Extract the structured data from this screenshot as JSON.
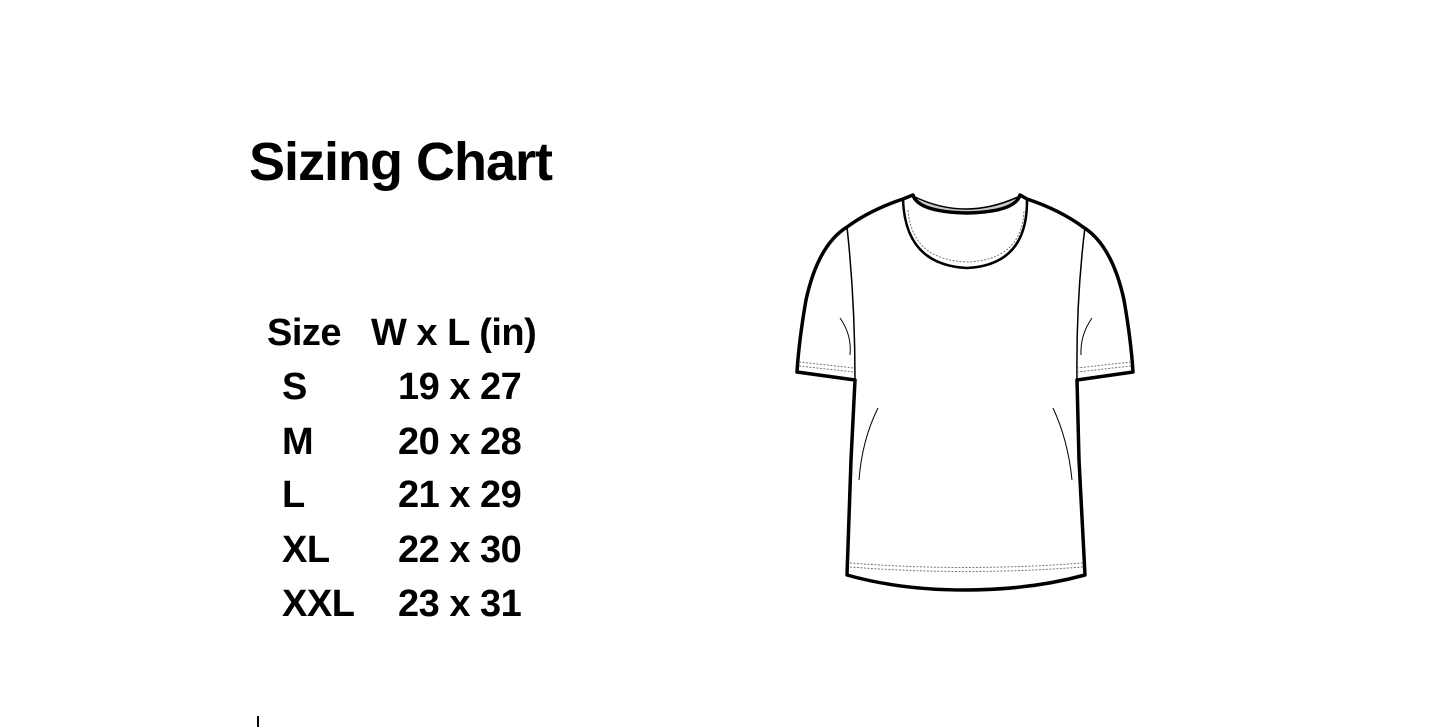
{
  "title": "Sizing Chart",
  "table": {
    "headers": [
      "Size",
      "W x L (in)"
    ],
    "rows": [
      {
        "size": "S",
        "dims": "19 x 27"
      },
      {
        "size": "M",
        "dims": "20 x 28"
      },
      {
        "size": "L",
        "dims": "21 x 29"
      },
      {
        "size": "XL",
        "dims": "22 x 30"
      },
      {
        "size": "XXL",
        "dims": "23 x 31"
      }
    ]
  },
  "illustration": {
    "icon": "t-shirt-icon",
    "neck_color": "#c8c8c8"
  }
}
